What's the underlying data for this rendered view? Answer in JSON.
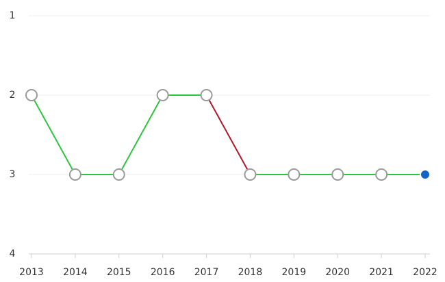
{
  "chart_data": {
    "type": "line",
    "categories": [
      "2013",
      "2014",
      "2015",
      "2016",
      "2017",
      "2018",
      "2019",
      "2020",
      "2021",
      "2022"
    ],
    "series": [
      {
        "values": [
          2,
          3,
          3,
          2,
          2,
          3,
          3,
          3,
          3,
          3
        ],
        "segment_colors": [
          "#2ec440",
          "#2ec440",
          "#2ec440",
          "#2ec440",
          "#b0182a",
          "#2ec440",
          "#2ec440",
          "#2ec440",
          "#2ec440"
        ],
        "marker_color": "#9a9a9a",
        "highlight_color": "#1463c8"
      }
    ],
    "ylim": [
      1,
      4
    ],
    "yticks": [
      1,
      2,
      3,
      4
    ],
    "y_inverted": true,
    "grid": true
  }
}
